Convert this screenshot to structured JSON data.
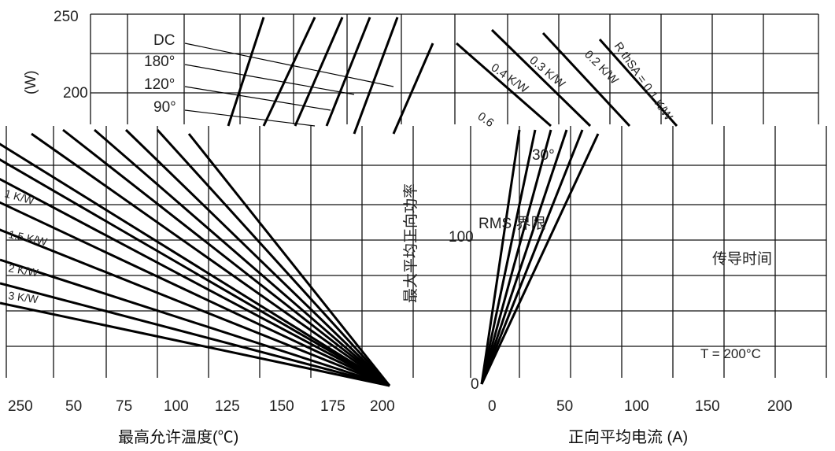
{
  "chart_data": [
    {
      "type": "line",
      "title": "",
      "ylabel": "(W)",
      "ylim": [
        0,
        250
      ],
      "yticks": [
        {
          "value": 250,
          "label": "250"
        },
        {
          "value": 200,
          "label": "200"
        },
        {
          "value": 100,
          "label": "100"
        },
        {
          "value": 0,
          "label": "0"
        }
      ],
      "xlabel": "最高允许温度(℃)",
      "xticks": [
        "250",
        "50",
        "75",
        "100",
        "125",
        "150",
        "175",
        "200"
      ],
      "conduction_angle_labels": [
        "DC",
        "180°",
        "120°",
        "90°",
        "30°"
      ],
      "thermal_resistance_labels": [
        "R thSA = 0.1 K/W",
        "0.2 K/W",
        "0.3 K/W",
        "0.4 K/W",
        "0.6",
        "1 K/W",
        "1.5 K/W",
        "2 K/W",
        "3 K/W"
      ]
    },
    {
      "type": "line",
      "title": "",
      "ylabel": "最大平均正向功率",
      "xlabel": "正向平均电流 (A)",
      "xlim": [
        0,
        225
      ],
      "xticks": [
        "0",
        "50",
        "100",
        "150",
        "200"
      ],
      "annotations": [
        "RMS 界限",
        "传导时间",
        "T = 200°C"
      ]
    }
  ],
  "colors": {
    "line": "#000000",
    "grid": "#111111"
  }
}
